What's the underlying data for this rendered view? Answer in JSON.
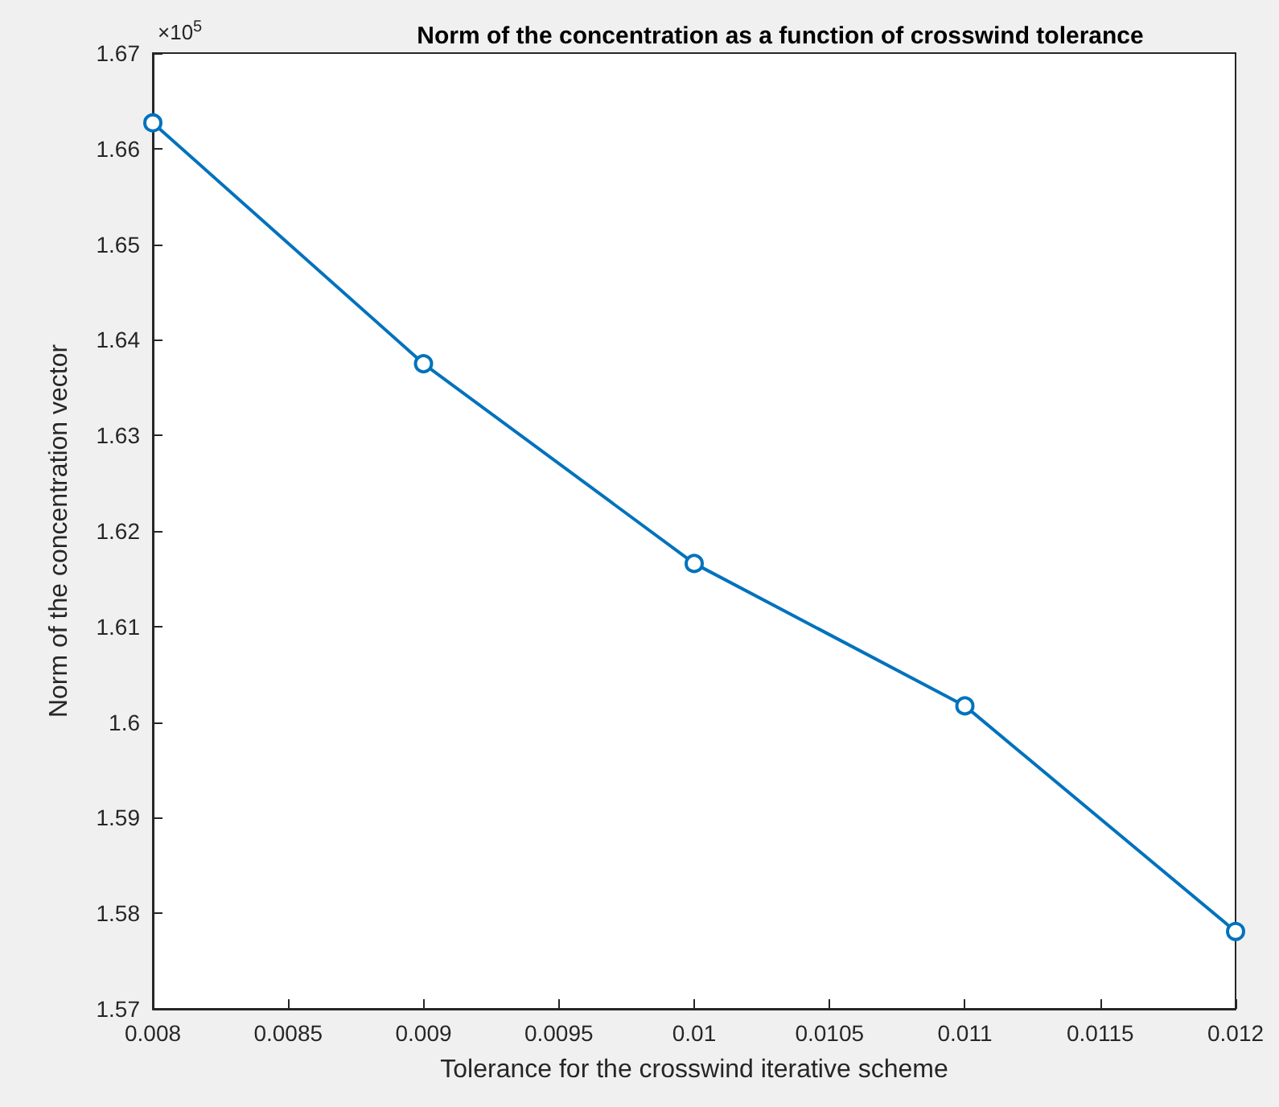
{
  "chart_data": {
    "type": "line",
    "title": "Norm of the concentration as a function of crosswind tolerance",
    "xlabel": "Tolerance for the crosswind iterative scheme",
    "ylabel": "Norm of the concentration vector",
    "annotations": [
      "×10$^{5}$"
    ],
    "x": [
      0.008,
      0.009,
      0.01,
      0.011,
      0.012
    ],
    "series": [
      {
        "color": "#0072bd",
        "values": [
          1.6627,
          1.6375,
          1.6166,
          1.6017,
          1.5781
        ]
      }
    ],
    "xlim": [
      0.008,
      0.012
    ],
    "xticks": [
      0.008,
      0.0085,
      0.009,
      0.0095,
      0.01,
      0.0105,
      0.011,
      0.0115,
      0.012
    ],
    "ylim": [
      1.57,
      1.67
    ],
    "yticks": [
      1.57,
      1.58,
      1.59,
      1.6,
      1.61,
      1.62,
      1.63,
      1.64,
      1.65,
      1.66,
      1.67
    ],
    "marker": "circle",
    "line_style": "solid"
  }
}
